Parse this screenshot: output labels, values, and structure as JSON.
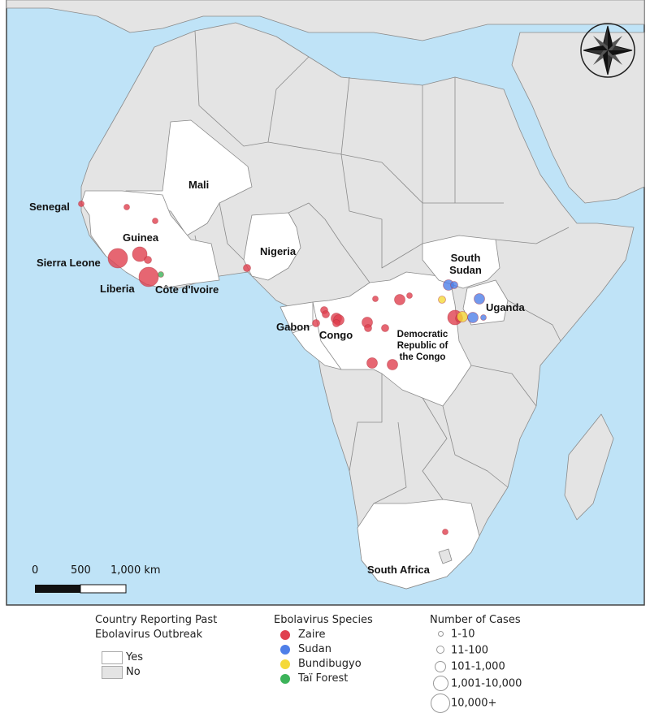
{
  "colors": {
    "ocean": "#bfe3f7",
    "land_no": "#e4e4e4",
    "land_yes": "#ffffff",
    "border": "#8a8a8a",
    "zaire": "#e0404f",
    "sudan": "#4f7fe8",
    "bundibugyo": "#f5d93a",
    "tai_forest": "#3cb35a"
  },
  "labels": {
    "senegal": "Senegal",
    "mali": "Mali",
    "guinea": "Guinea",
    "sierra_leone": "Sierra Leone",
    "liberia": "Liberia",
    "cote_divoire": "Côte d'Ivoire",
    "nigeria": "Nigeria",
    "gabon": "Gabon",
    "congo": "Congo",
    "drc": "Democratic Republic of the Congo",
    "south_sudan": "South Sudan",
    "uganda": "Uganda",
    "south_africa": "South Africa"
  },
  "compass_icon": "compass-rose-icon",
  "scale_bar": {
    "tick0": "0",
    "tick1": "500",
    "tick2": "1,000 km"
  },
  "legend": {
    "country": {
      "title": "Country Reporting Past Ebolavirus Outbreak",
      "yes": "Yes",
      "no": "No"
    },
    "species": {
      "title": "Ebolavirus Species",
      "items": [
        "Zaire",
        "Sudan",
        "Bundibugyo",
        "Taï Forest"
      ]
    },
    "cases": {
      "title": "Number of Cases",
      "items": [
        "1-10",
        "11-100",
        "101-1,000",
        "1,001-10,000",
        "10,000+"
      ]
    }
  },
  "outbreaks": [
    {
      "country": "Senegal",
      "species": "zaire",
      "cases": "1-10"
    },
    {
      "country": "Mali",
      "species": "zaire",
      "cases": "1-10"
    },
    {
      "country": "Mali",
      "species": "zaire",
      "cases": "1-10"
    },
    {
      "country": "Sierra Leone",
      "species": "zaire",
      "cases": "10,000+"
    },
    {
      "country": "Guinea",
      "species": "zaire",
      "cases": "1,001-10,000"
    },
    {
      "country": "Guinea",
      "species": "zaire",
      "cases": "11-100"
    },
    {
      "country": "Liberia",
      "species": "zaire",
      "cases": "10,000+"
    },
    {
      "country": "Côte d'Ivoire",
      "species": "tai_forest",
      "cases": "1-10"
    },
    {
      "country": "Nigeria",
      "species": "zaire",
      "cases": "11-100"
    },
    {
      "country": "Gabon",
      "species": "zaire",
      "cases": "11-100"
    },
    {
      "country": "Gabon",
      "species": "zaire",
      "cases": "11-100"
    },
    {
      "country": "Gabon",
      "species": "zaire",
      "cases": "11-100"
    },
    {
      "country": "Congo",
      "species": "zaire",
      "cases": "101-1,000"
    },
    {
      "country": "Congo",
      "species": "zaire",
      "cases": "101-1,000"
    },
    {
      "country": "Congo",
      "species": "zaire",
      "cases": "11-100"
    },
    {
      "country": "Democratic Republic of the Congo",
      "species": "zaire",
      "cases": "101-1,000"
    },
    {
      "country": "Democratic Republic of the Congo",
      "species": "zaire",
      "cases": "11-100"
    },
    {
      "country": "Democratic Republic of the Congo",
      "species": "zaire",
      "cases": "1-10"
    },
    {
      "country": "Democratic Republic of the Congo",
      "species": "zaire",
      "cases": "101-1,000"
    },
    {
      "country": "Democratic Republic of the Congo",
      "species": "zaire",
      "cases": "1-10"
    },
    {
      "country": "Democratic Republic of the Congo",
      "species": "zaire",
      "cases": "11-100"
    },
    {
      "country": "Democratic Republic of the Congo",
      "species": "zaire",
      "cases": "101-1,000"
    },
    {
      "country": "Democratic Republic of the Congo",
      "species": "zaire",
      "cases": "101-1,000"
    },
    {
      "country": "Democratic Republic of the Congo",
      "species": "zaire",
      "cases": "1,001-10,000"
    },
    {
      "country": "Democratic Republic of the Congo",
      "species": "zaire",
      "cases": "11-100"
    },
    {
      "country": "Democratic Republic of the Congo",
      "species": "bundibugyo",
      "cases": "101-1,000"
    },
    {
      "country": "Democratic Republic of the Congo",
      "species": "bundibugyo",
      "cases": "11-100"
    },
    {
      "country": "South Sudan",
      "species": "sudan",
      "cases": "101-1,000"
    },
    {
      "country": "South Sudan",
      "species": "sudan",
      "cases": "11-100"
    },
    {
      "country": "Uganda",
      "species": "sudan",
      "cases": "101-1,000"
    },
    {
      "country": "Uganda",
      "species": "sudan",
      "cases": "101-1,000"
    },
    {
      "country": "Uganda",
      "species": "sudan",
      "cases": "1-10"
    },
    {
      "country": "South Africa",
      "species": "zaire",
      "cases": "1-10"
    }
  ]
}
